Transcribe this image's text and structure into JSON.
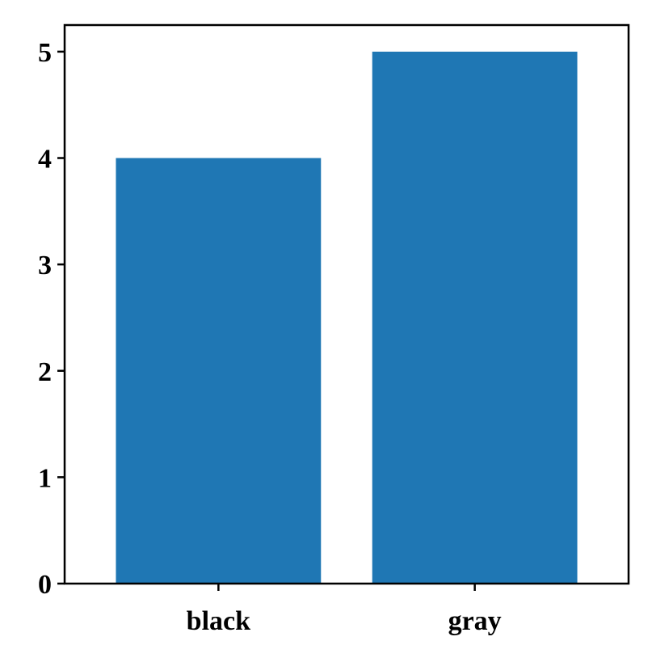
{
  "chart_data": {
    "type": "bar",
    "categories": [
      "black",
      "gray"
    ],
    "values": [
      4,
      5
    ],
    "title": "",
    "xlabel": "",
    "ylabel": "",
    "ylim": [
      0,
      5.25
    ],
    "yticks": [
      0,
      1,
      2,
      3,
      4,
      5
    ],
    "grid": false,
    "legend": "none",
    "colors": {
      "bar": "#1f77b4",
      "axes": "#000000",
      "background": "#ffffff"
    }
  }
}
